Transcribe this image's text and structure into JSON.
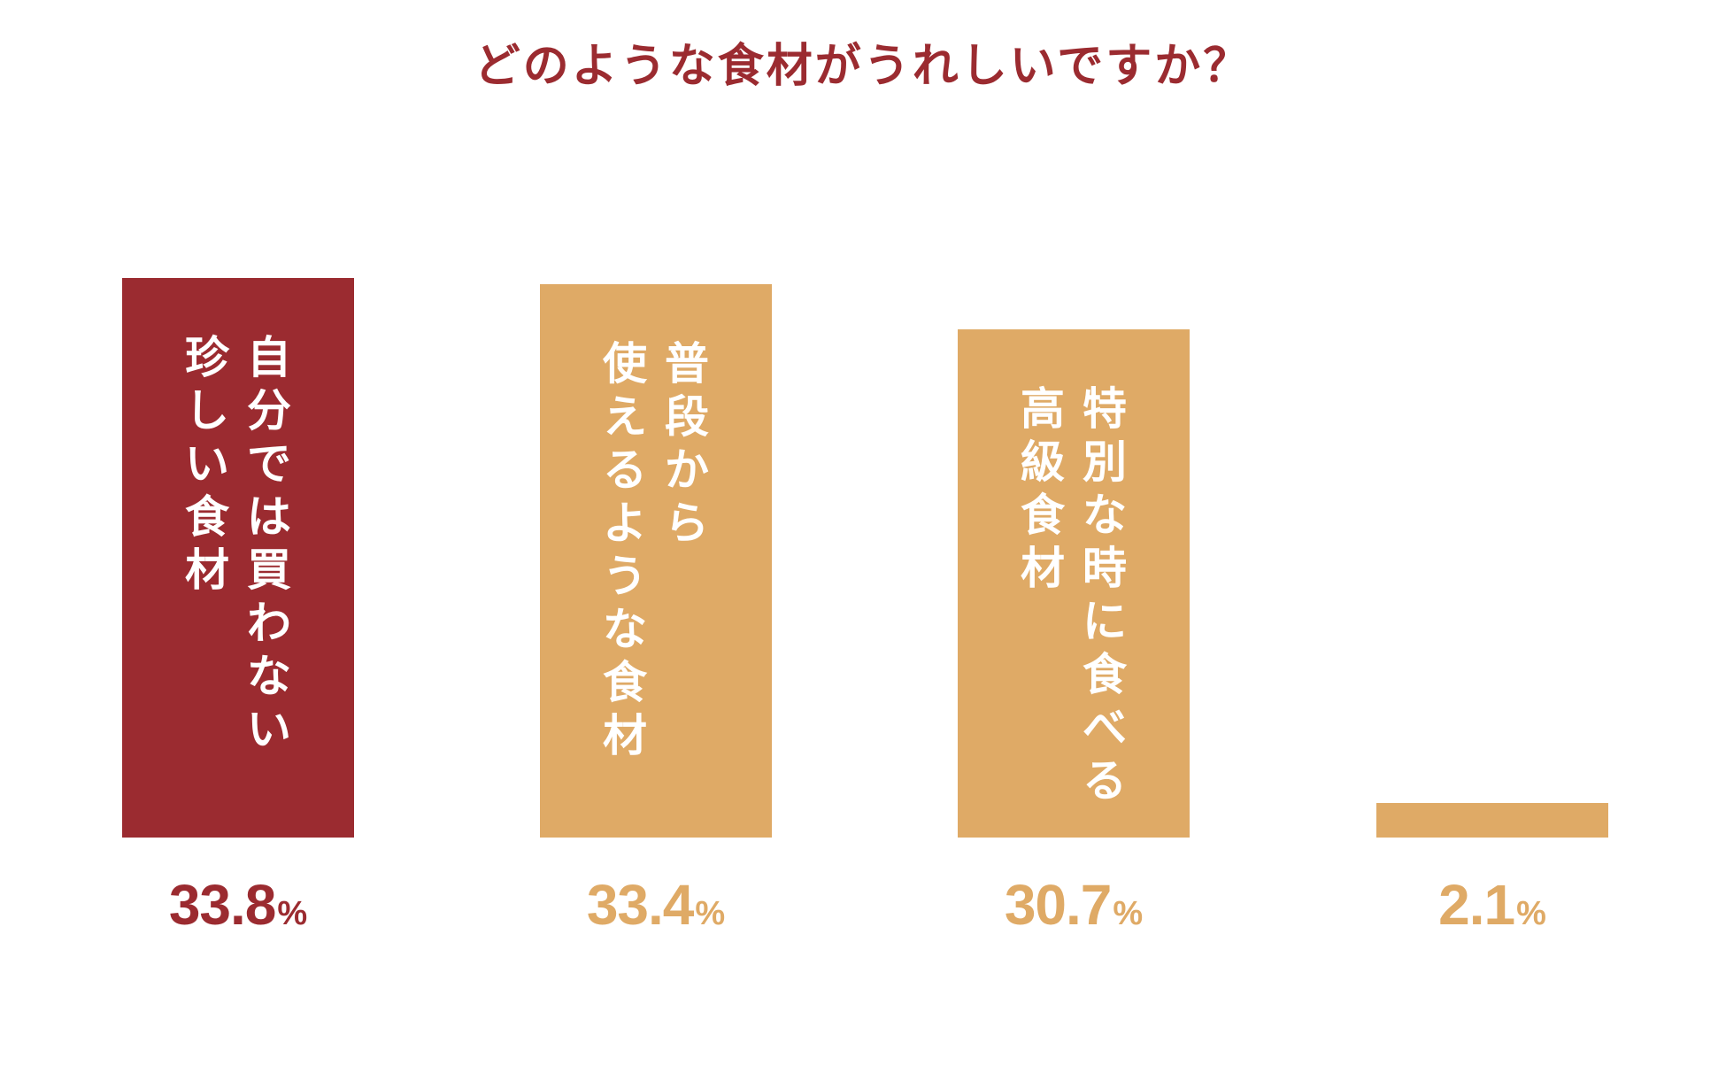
{
  "chart_data": {
    "type": "bar",
    "title": "どのような食材がうれしいですか？",
    "categories": [
      "自分では買わない珍しい食材",
      "普段から使えるような食材",
      "特別な時に食べる高級食材",
      ""
    ],
    "label_lines": [
      [
        "自分では買わない",
        "珍しい食材"
      ],
      [
        "普段から",
        "使えるような食材"
      ],
      [
        "特別な時に食べる",
        "高級食材"
      ],
      []
    ],
    "values": [
      33.8,
      33.4,
      30.7,
      2.1
    ],
    "value_labels": [
      "33.8",
      "33.4",
      "30.7",
      "2.1"
    ],
    "unit": "%",
    "colors": [
      "#9B2B30",
      "#DFAA66",
      "#DFAA66",
      "#DFAA66"
    ],
    "ylim": [
      0,
      33.8
    ],
    "grid": false,
    "legend": "none",
    "xlabel": "",
    "ylabel": ""
  },
  "colors": {
    "title": "#9B2B30",
    "highlight": "#9B2B30",
    "base": "#DFAA66"
  }
}
